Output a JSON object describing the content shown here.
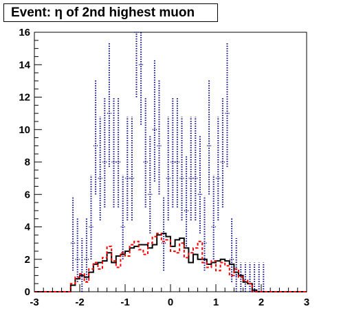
{
  "chart_data": {
    "type": "histogram",
    "title": "Event: η of 2nd highest muon",
    "xlabel": "",
    "ylabel": "",
    "xlim": [
      -3,
      3
    ],
    "ylim": [
      0,
      16
    ],
    "bin_width": 0.1,
    "x_ticks": [
      -3,
      -2,
      -1,
      0,
      1,
      2,
      3
    ],
    "y_ticks": [
      0,
      2,
      4,
      6,
      8,
      10,
      12,
      14,
      16
    ],
    "grid": false,
    "series": [
      {
        "style": "data-points-error-bars",
        "color": "#00008b",
        "x": [
          -2.15,
          -2.05,
          -1.95,
          -1.85,
          -1.75,
          -1.65,
          -1.55,
          -1.45,
          -1.35,
          -1.25,
          -1.15,
          -1.05,
          -0.95,
          -0.85,
          -0.75,
          -0.65,
          -0.55,
          -0.45,
          -0.35,
          -0.25,
          -0.15,
          -0.05,
          0.05,
          0.15,
          0.25,
          0.35,
          0.45,
          0.55,
          0.65,
          0.75,
          0.85,
          0.95,
          1.05,
          1.15,
          1.25,
          1.35,
          1.45,
          1.55,
          1.65,
          1.75,
          1.85,
          1.95,
          2.05
        ],
        "values": [
          3,
          2,
          1,
          2,
          4,
          9,
          7,
          8,
          11,
          8,
          8,
          4,
          7,
          7,
          16,
          14,
          8,
          6,
          10,
          9,
          3,
          7,
          8,
          8,
          7,
          5,
          7,
          7,
          6,
          3,
          9,
          4,
          7,
          8,
          11,
          2,
          1,
          0,
          0,
          0,
          0,
          0,
          0
        ],
        "errors_low": [
          1.7,
          1.4,
          1,
          1.4,
          2,
          3,
          2.6,
          2.8,
          3.3,
          2.8,
          2.8,
          2,
          2.6,
          2.6,
          4,
          3.7,
          2.8,
          2.4,
          3.2,
          3,
          1.7,
          2.6,
          2.8,
          2.8,
          2.6,
          2.2,
          2.6,
          2.6,
          2.4,
          1.7,
          3,
          2,
          2.6,
          2.8,
          3.3,
          1.4,
          1,
          0,
          0,
          0,
          0,
          0,
          0
        ],
        "errors_high": [
          2.9,
          2.6,
          2.3,
          2.6,
          3.2,
          4.1,
          3.8,
          4,
          4.4,
          4,
          4,
          3.2,
          3.8,
          3.8,
          5.1,
          4.9,
          4,
          3.6,
          4.3,
          4.1,
          2.9,
          3.8,
          4,
          4,
          3.8,
          3.4,
          3.8,
          3.8,
          3.6,
          2.9,
          4.1,
          3.2,
          3.8,
          4,
          4.4,
          2.6,
          2.3,
          1.8,
          1.8,
          1.8,
          1.8,
          1.8,
          1.8
        ]
      },
      {
        "style": "step-solid",
        "color": "#000000",
        "x": [
          -2.15,
          -2.05,
          -1.95,
          -1.85,
          -1.75,
          -1.65,
          -1.55,
          -1.45,
          -1.35,
          -1.25,
          -1.15,
          -1.05,
          -0.95,
          -0.85,
          -0.75,
          -0.65,
          -0.55,
          -0.45,
          -0.35,
          -0.25,
          -0.15,
          -0.05,
          0.05,
          0.15,
          0.25,
          0.35,
          0.45,
          0.55,
          0.65,
          0.75,
          0.85,
          0.95,
          1.05,
          1.15,
          1.25,
          1.35,
          1.45,
          1.55,
          1.65,
          1.75,
          1.85,
          1.95,
          2.05
        ],
        "values": [
          0.4,
          0.8,
          1.0,
          0.9,
          1.2,
          1.7,
          1.8,
          1.9,
          2.4,
          1.8,
          2.2,
          2.3,
          2.5,
          2.7,
          2.8,
          2.9,
          2.9,
          2.7,
          2.9,
          3.5,
          3.6,
          3.4,
          2.8,
          3.2,
          3.3,
          2.7,
          1.8,
          2.3,
          2.0,
          2.0,
          1.7,
          1.8,
          1.9,
          2.0,
          1.9,
          1.7,
          1.2,
          1.0,
          0.6,
          0.5,
          0.1,
          0.0,
          0.0
        ]
      },
      {
        "style": "step-dashed",
        "color": "#ff0000",
        "x": [
          -2.15,
          -2.05,
          -1.95,
          -1.85,
          -1.75,
          -1.65,
          -1.55,
          -1.45,
          -1.35,
          -1.25,
          -1.15,
          -1.05,
          -0.95,
          -0.85,
          -0.75,
          -0.65,
          -0.55,
          -0.45,
          -0.35,
          -0.25,
          -0.15,
          -0.05,
          0.05,
          0.15,
          0.25,
          0.35,
          0.45,
          0.55,
          0.65,
          0.75,
          0.85,
          0.95,
          1.05,
          1.15,
          1.25,
          1.35,
          1.45,
          1.55,
          1.65,
          1.75,
          1.85,
          1.95,
          2.05
        ],
        "values": [
          0.5,
          0.9,
          1.1,
          0.6,
          1.4,
          1.8,
          1.4,
          2.1,
          2.8,
          1.9,
          1.5,
          2.4,
          2.2,
          2.9,
          3.1,
          2.6,
          2.3,
          3.0,
          3.4,
          3.6,
          3.1,
          3.2,
          2.5,
          2.4,
          3.0,
          2.1,
          2.4,
          2.7,
          3.1,
          1.8,
          1.5,
          1.9,
          1.3,
          1.8,
          1.6,
          1.0,
          1.4,
          0.9,
          0.7,
          0.5,
          0.0,
          0.0,
          0.0
        ]
      }
    ]
  }
}
